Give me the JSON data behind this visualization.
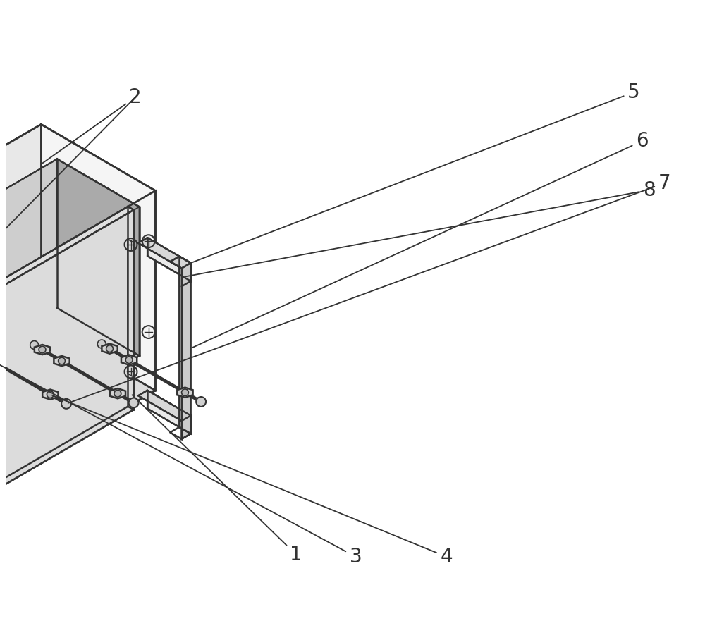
{
  "background_color": "#ffffff",
  "line_color": "#333333",
  "line_width": 1.6,
  "label_fontsize": 20,
  "fig_width": 10.0,
  "fig_height": 8.81,
  "face_colors": {
    "top": "#e8e8e8",
    "front": "#f5f5f5",
    "right": "#dcdcdc",
    "inner_dark": "#c0c0c0",
    "inner_ceil": "#d0d0d0",
    "inner_floor": "#c8c8c8",
    "plate": "#efefef",
    "bracket": "#e8e8e8",
    "bolt_rod": "#d0d0d0",
    "nut": "#cccccc"
  }
}
